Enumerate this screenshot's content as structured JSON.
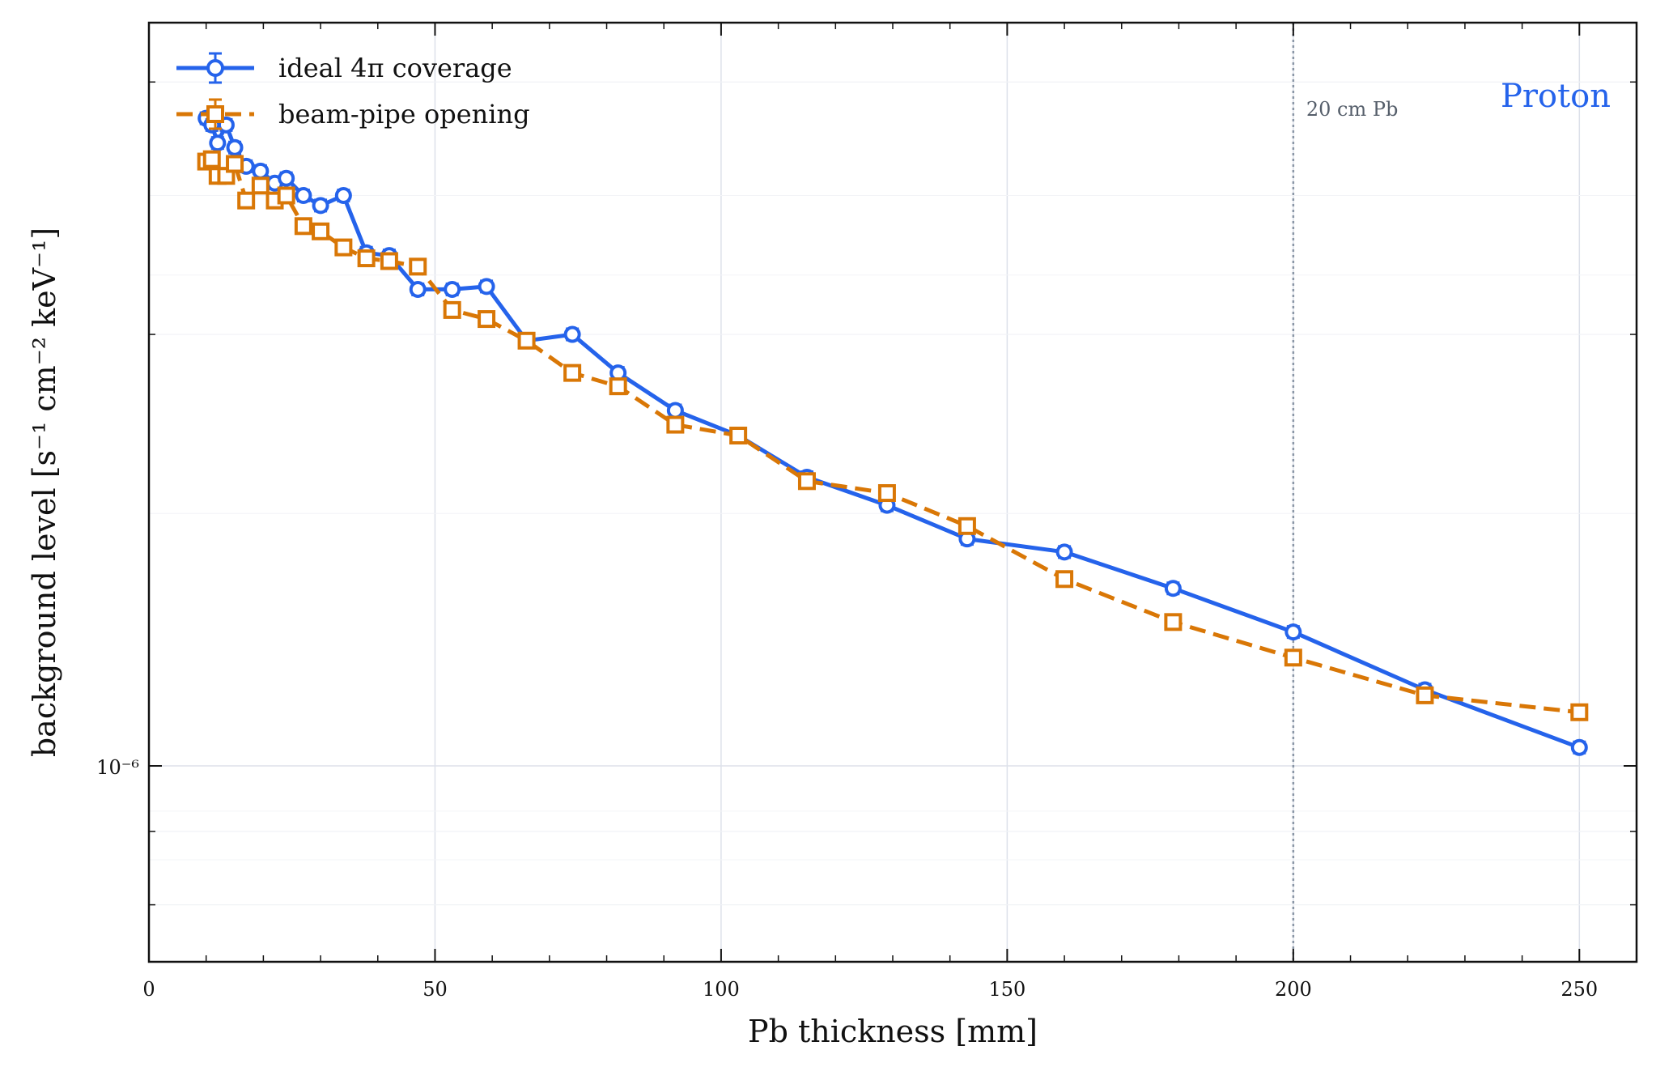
{
  "chart_data": {
    "type": "line",
    "xlabel": "Pb thickness [mm]",
    "ylabel": "background level [s⁻¹ cm⁻² keV⁻¹]",
    "xlim": [
      0,
      260
    ],
    "ylim": [
      7.3e-07,
      3.3e-06
    ],
    "y_scale": "log",
    "x_ticks": [
      0,
      50,
      100,
      150,
      200,
      250
    ],
    "x_tick_labels": [
      "0",
      "50",
      "100",
      "150",
      "200",
      "250"
    ],
    "y_tick_label": "10⁻⁶",
    "y_tick_value": 1e-06,
    "grid": true,
    "legend_position": "top-left",
    "series": [
      {
        "name": "ideal 4π coverage",
        "color": "#2563eb",
        "marker": "circle",
        "line_style": "solid",
        "x": [
          10,
          11,
          12,
          13.5,
          15,
          17,
          19.5,
          22,
          24,
          27,
          30,
          34,
          38,
          42,
          47,
          53,
          59,
          66,
          74,
          82,
          92,
          103,
          115,
          129,
          143,
          160,
          179,
          200,
          223,
          250
        ],
        "y": [
          2.83e-06,
          2.8e-06,
          2.72e-06,
          2.8e-06,
          2.7e-06,
          2.62e-06,
          2.6e-06,
          2.55e-06,
          2.57e-06,
          2.5e-06,
          2.46e-06,
          2.5e-06,
          2.28e-06,
          2.27e-06,
          2.15e-06,
          2.15e-06,
          2.16e-06,
          1.98e-06,
          2e-06,
          1.88e-06,
          1.77e-06,
          1.7e-06,
          1.59e-06,
          1.52e-06,
          1.44e-06,
          1.41e-06,
          1.33e-06,
          1.24e-06,
          1.13e-06,
          1.03e-06
        ]
      },
      {
        "name": "beam-pipe opening",
        "color": "#d97706",
        "marker": "square",
        "line_style": "dashed",
        "x": [
          10,
          11,
          12,
          13.5,
          15,
          17,
          19.5,
          22,
          24,
          27,
          30,
          34,
          38,
          42,
          47,
          53,
          59,
          66,
          74,
          82,
          92,
          103,
          115,
          129,
          143,
          160,
          179,
          200,
          223,
          250
        ],
        "y": [
          2.64e-06,
          2.65e-06,
          2.58e-06,
          2.58e-06,
          2.63e-06,
          2.48e-06,
          2.54e-06,
          2.48e-06,
          2.5e-06,
          2.38e-06,
          2.36e-06,
          2.3e-06,
          2.26e-06,
          2.25e-06,
          2.23e-06,
          2.08e-06,
          2.05e-06,
          1.98e-06,
          1.88e-06,
          1.84e-06,
          1.73e-06,
          1.7e-06,
          1.58e-06,
          1.55e-06,
          1.47e-06,
          1.35e-06,
          1.26e-06,
          1.19e-06,
          1.12e-06,
          1.09e-06
        ]
      }
    ],
    "annotations": {
      "vline_x": 200,
      "vline_label": "20 cm Pb",
      "corner_label": "Proton",
      "corner_label_color": "#2563eb"
    }
  }
}
